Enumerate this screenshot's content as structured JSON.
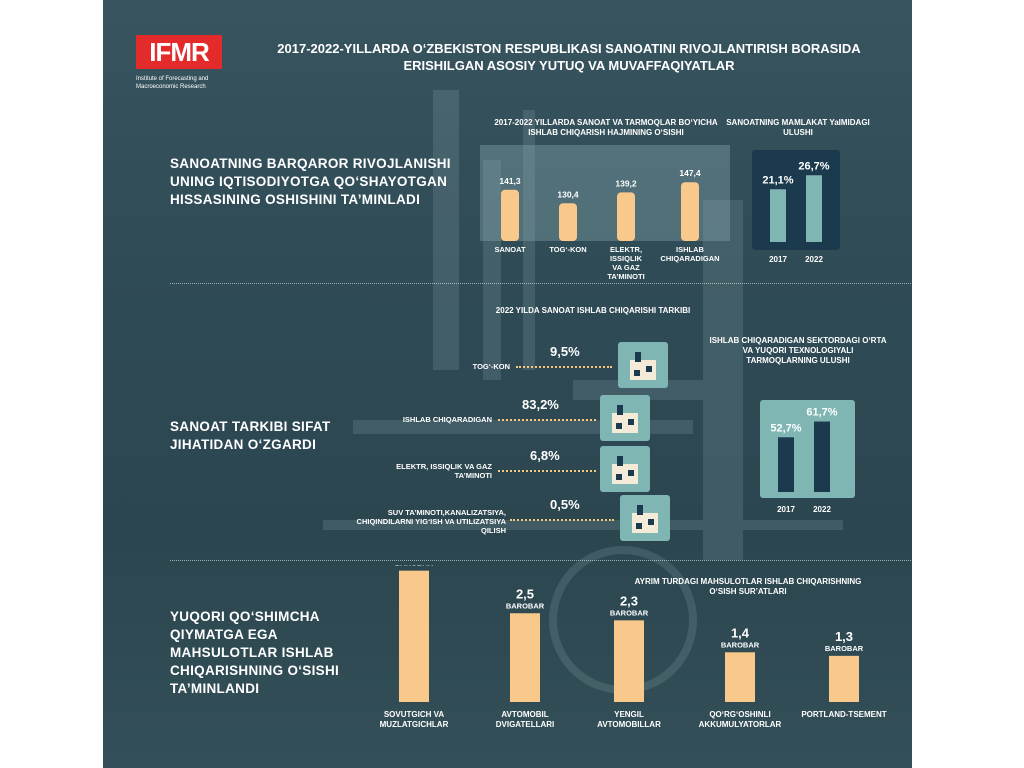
{
  "logo": {
    "text": "IFMR",
    "subtitle": "Institute of Forecasting and Macroeconomic Research"
  },
  "title": "2017-2022-YILLARDA O‘ZBEKISTON RESPUBLIKASI SANOATINI RIVOJLANTIRISH BORASIDA ERISHILGAN ASOSIY YUTUQ VA MUVAFFAQIYATLAR",
  "sections": {
    "s1_heading": "SANOATNING BARQAROR RIVOJLANISHI UNING IQTISODIYOTGA QO‘SHAYOTGAN HISSASINING OSHISHINI TA’MINLADI",
    "s2_heading": "SANOAT TARKIBI SIFAT JIHATIDAN O‘ZGARDI",
    "s3_heading": "YUQORI QO‘SHIMCHA QIYMATGA EGA MAHSULOTLAR ISHLAB CHIQARISHNING O‘SISHI TA’MINLANDI"
  },
  "colors": {
    "bar": "#f8c98a",
    "teal": "#7fb6b4",
    "navy": "#1c3a4e",
    "accent": "#e32b2b"
  },
  "chart_data": [
    {
      "type": "bar",
      "title": "2017-2022 YILLARDA SANOAT VA TARMOQLAR BO‘YICHA ISHLAB CHIQARISH HAJMINING O‘SISHI",
      "categories": [
        "SANOAT",
        "TOG‘-KON",
        "ELEKTR, ISSIQLIK VA GAZ TA’MINOTI",
        "ISHLAB CHIQARADIGAN"
      ],
      "values": [
        141.3,
        130.4,
        139.2,
        147.4
      ],
      "value_labels": [
        "141,3",
        "130,4",
        "139,2",
        "147,4"
      ]
    },
    {
      "type": "bar",
      "title": "SANOATNING MAMLAKAT YaIMIDAGI ULUSHI",
      "categories": [
        "2017",
        "2022"
      ],
      "values": [
        21.1,
        26.7
      ],
      "value_labels": [
        "21,1%",
        "26,7%"
      ]
    },
    {
      "type": "bar",
      "title": "2022 YILDA SANOAT ISHLAB CHIQARISHI TARKIBI",
      "categories": [
        "TOG‘-KON",
        "ISHLAB CHIQARADIGAN",
        "ELEKTR, ISSIQLIK VA GAZ TA’MINOTI",
        "SUV TA’MINOTI,KANALIZATSIYA, CHIQINDILARNI YIG‘ISH VA UTILIZATSIYA QILISH"
      ],
      "values": [
        9.5,
        83.2,
        6.8,
        0.5
      ],
      "value_labels": [
        "9,5%",
        "83,2%",
        "6,8%",
        "0,5%"
      ],
      "icons": [
        "mining-icon",
        "factory-icon",
        "power-plant-icon",
        "water-building-icon"
      ]
    },
    {
      "type": "bar",
      "title": "ISHLAB CHIQARADIGAN SEKTORDAGI O‘RTA VA YUQORI TEXNOLOGIYALI TARMOQLARNING ULUSHI",
      "categories": [
        "2017",
        "2022"
      ],
      "values": [
        52.7,
        61.7
      ],
      "value_labels": [
        "52,7%",
        "61,7%"
      ]
    },
    {
      "type": "bar",
      "title": "AYRIM TURDAGI MAHSULOTLAR ISHLAB CHIQARISHNING O‘SISH SUR’ATLARI",
      "categories": [
        "SOVUTGICH VA MUZLATGICHLAR",
        "AVTOMOBIL DVIGATELLARI",
        "YENGIL AVTOMOBILLAR",
        "QO‘RG‘OSHINLI AKKUMULYATORLAR",
        "PORTLAND-TSEMENT"
      ],
      "values": [
        3.7,
        2.5,
        2.3,
        1.4,
        1.3
      ],
      "value_labels": [
        "3,7",
        "2,5",
        "2,3",
        "1,4",
        "1,3"
      ],
      "unit": "BAROBAR"
    }
  ]
}
